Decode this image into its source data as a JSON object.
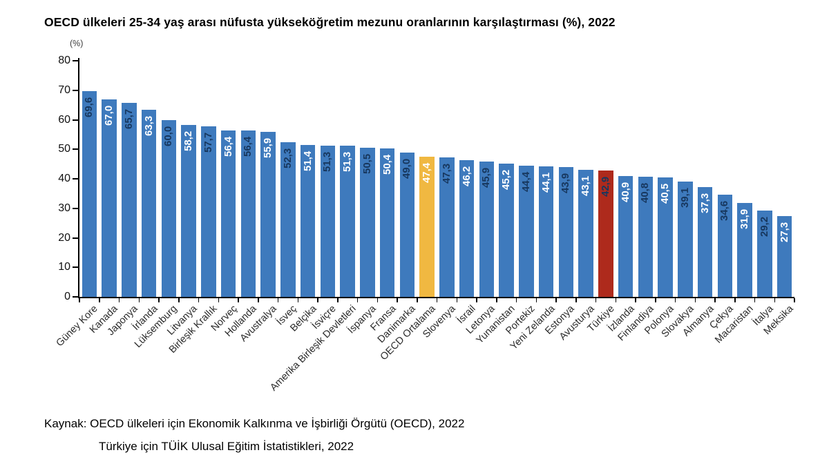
{
  "title": "OECD ülkeleri 25-34 yaş arası nüfusta yükseköğretim mezunu oranlarının karşılaştırması (%), 2022",
  "y_axis_unit": "(%)",
  "source": {
    "line1": "Kaynak: OECD ülkeleri için Ekonomik Kalkınma ve İşbirliği Örgütü (OECD), 2022",
    "line2": "Türkiye için TÜİK Ulusal Eğitim İstatistikleri, 2022"
  },
  "colors": {
    "bar_default": "#3E7ABD",
    "bar_oecd_average": "#F0B841",
    "bar_turkiye": "#AE2A1C",
    "value_label_dark": "#17375E",
    "value_label_light": "#FFFFFF",
    "axis": "#000000"
  },
  "chart_data": {
    "type": "bar",
    "title": "OECD ülkeleri 25-34 yaş arası nüfusta yükseköğretim mezunu oranlarının karşılaştırması (%), 2022",
    "xlabel": "",
    "ylabel": "(%)",
    "ylim": [
      0,
      80
    ],
    "yticks": [
      0,
      10,
      20,
      30,
      40,
      50,
      60,
      70,
      80
    ],
    "grid": false,
    "legend_position": "none",
    "decimal_separator": ",",
    "categories": [
      "Güney Kore",
      "Kanada",
      "Japonya",
      "İrlanda",
      "Lüksemburg",
      "Litvanya",
      "Birleşik Krallık",
      "Norveç",
      "Hollanda",
      "Avustralya",
      "İsveç",
      "Belçika",
      "İsviçre",
      "Amerika Birleşik Devletleri",
      "İspanya",
      "Fransa",
      "Danimarka",
      "OECD Ortalama",
      "Slovenya",
      "İsrail",
      "Letonya",
      "Yunanistan",
      "Portekiz",
      "Yeni Zelanda",
      "Estonya",
      "Avusturya",
      "Türkiye",
      "İzlanda",
      "Finlandiya",
      "Polonya",
      "Slovakya",
      "Almanya",
      "Çekya",
      "Macaristan",
      "İtalya",
      "Meksika"
    ],
    "values": [
      69.6,
      67.0,
      65.7,
      63.3,
      60.0,
      58.2,
      57.7,
      56.4,
      56.4,
      55.9,
      52.3,
      51.4,
      51.3,
      51.3,
      50.5,
      50.4,
      49.0,
      47.4,
      47.3,
      46.2,
      45.9,
      45.2,
      44.4,
      44.1,
      43.9,
      43.1,
      42.9,
      40.9,
      40.8,
      40.5,
      39.1,
      37.3,
      34.6,
      31.9,
      29.2,
      27.3
    ],
    "highlights": [
      {
        "category": "OECD Ortalama",
        "color": "#F0B841"
      },
      {
        "category": "Türkiye",
        "color": "#AE2A1C"
      }
    ]
  }
}
